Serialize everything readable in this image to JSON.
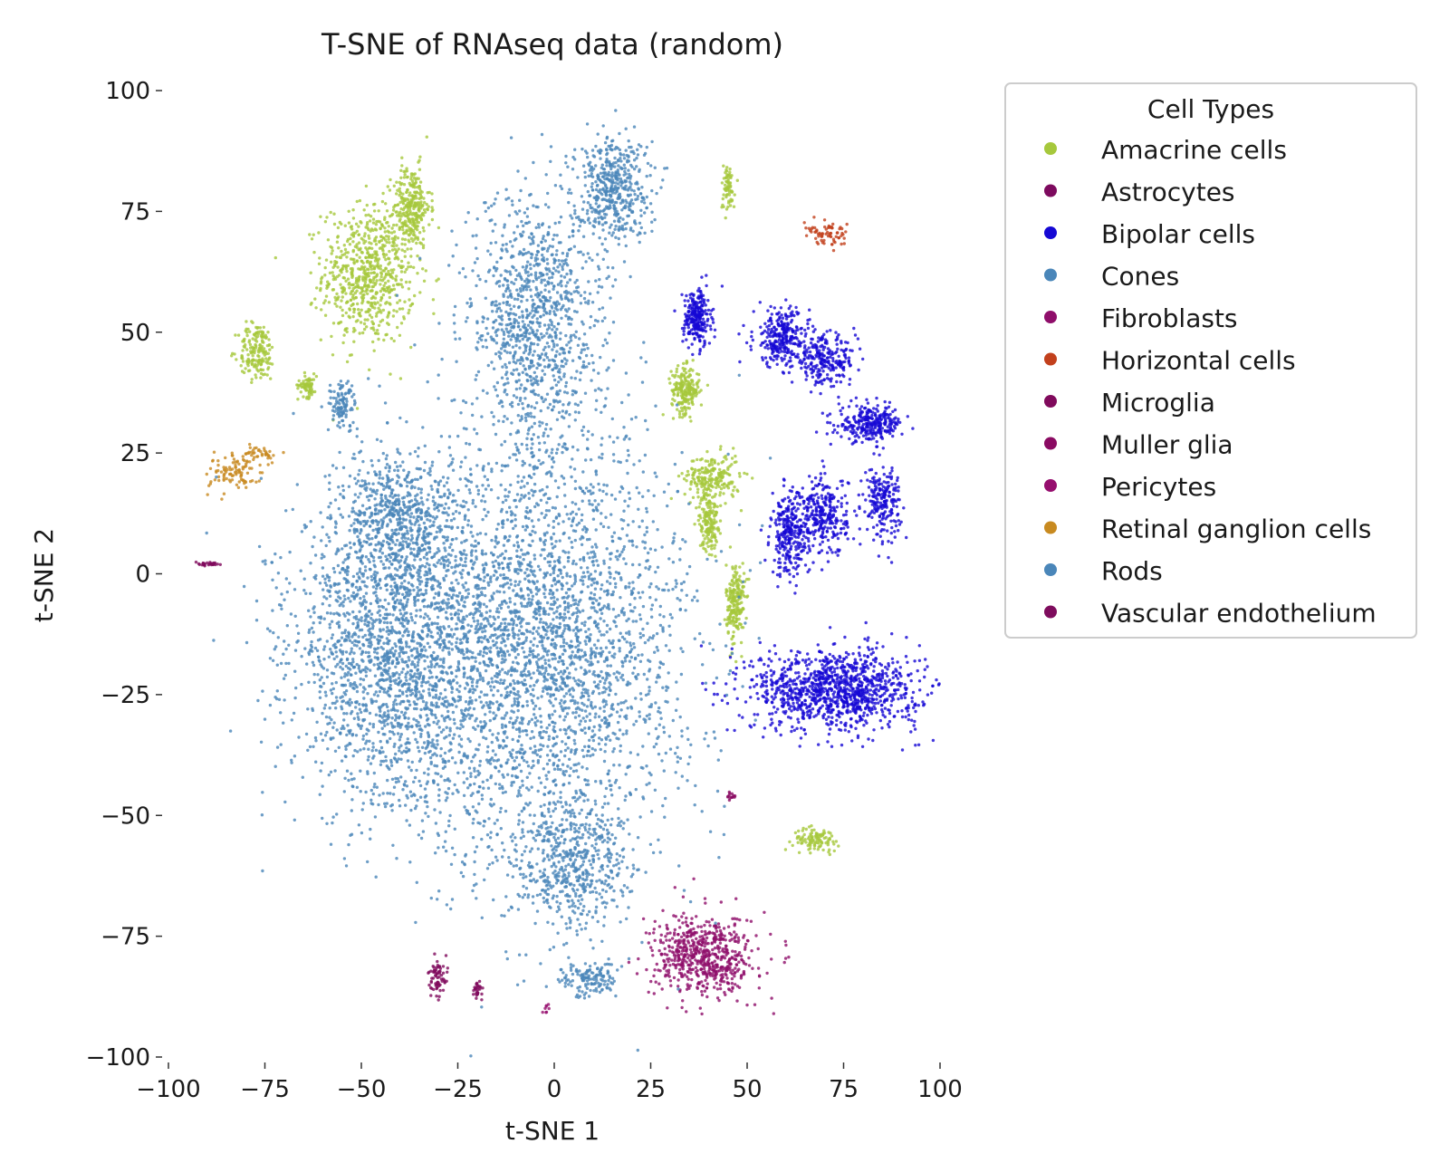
{
  "chart_data": {
    "type": "scatter",
    "title": "T-SNE of RNAseq data (random)",
    "xlabel": "t-SNE 1",
    "ylabel": "t-SNE 2",
    "xlim": [
      -100,
      100
    ],
    "ylim": [
      -100,
      100
    ],
    "xticks": [
      -100,
      -75,
      -50,
      -25,
      0,
      25,
      50,
      75,
      100
    ],
    "yticks": [
      -100,
      -75,
      -50,
      -25,
      0,
      25,
      50,
      75,
      100
    ],
    "grid": false,
    "legend": {
      "title": "Cell Types",
      "placement": "outside-right-top"
    },
    "series": [
      {
        "name": "Amacrine cells",
        "color": "#a6c83c",
        "clusters": [
          {
            "center": [
              -48,
              62
            ],
            "spread": [
              10,
              12
            ],
            "weight": 1.0
          },
          {
            "center": [
              -37,
              76
            ],
            "spread": [
              4,
              7
            ],
            "weight": 0.4
          },
          {
            "center": [
              -77,
              46
            ],
            "spread": [
              4,
              5
            ],
            "weight": 0.25
          },
          {
            "center": [
              -64,
              39
            ],
            "spread": [
              2,
              2
            ],
            "weight": 0.1
          },
          {
            "center": [
              34,
              38
            ],
            "spread": [
              3,
              4
            ],
            "weight": 0.3
          },
          {
            "center": [
              41,
              20
            ],
            "spread": [
              6,
              4
            ],
            "weight": 0.3
          },
          {
            "center": [
              40,
              11
            ],
            "spread": [
              2,
              5
            ],
            "weight": 0.25
          },
          {
            "center": [
              47,
              -6
            ],
            "spread": [
              2,
              7
            ],
            "weight": 0.3
          },
          {
            "center": [
              45,
              80
            ],
            "spread": [
              1.5,
              4
            ],
            "weight": 0.1
          },
          {
            "center": [
              68,
              -55
            ],
            "spread": [
              5,
              2
            ],
            "weight": 0.15
          }
        ]
      },
      {
        "name": "Astrocytes",
        "color": "#7d0a5e",
        "clusters": []
      },
      {
        "name": "Bipolar cells",
        "color": "#1508d4",
        "clusters": [
          {
            "center": [
              37,
              53
            ],
            "spread": [
              3,
              5
            ],
            "weight": 0.35
          },
          {
            "center": [
              59,
              49
            ],
            "spread": [
              6,
              5
            ],
            "weight": 0.4
          },
          {
            "center": [
              70,
              44
            ],
            "spread": [
              7,
              4
            ],
            "weight": 0.35
          },
          {
            "center": [
              82,
              31
            ],
            "spread": [
              7,
              3
            ],
            "weight": 0.4
          },
          {
            "center": [
              85,
              15
            ],
            "spread": [
              4,
              6
            ],
            "weight": 0.3
          },
          {
            "center": [
              70,
              12
            ],
            "spread": [
              5,
              7
            ],
            "weight": 0.4
          },
          {
            "center": [
              61,
              8
            ],
            "spread": [
              4,
              7
            ],
            "weight": 0.4
          },
          {
            "center": [
              73,
              -24
            ],
            "spread": [
              18,
              7
            ],
            "weight": 1.6
          }
        ]
      },
      {
        "name": "Cones",
        "color": "#4a86b9",
        "clusters": [
          {
            "center": [
              15,
              80
            ],
            "spread": [
              8,
              9
            ],
            "weight": 0.7
          },
          {
            "center": [
              -55,
              35
            ],
            "spread": [
              3,
              4
            ],
            "weight": 0.15
          },
          {
            "center": [
              9,
              -84
            ],
            "spread": [
              6,
              3
            ],
            "weight": 0.2
          }
        ]
      },
      {
        "name": "Fibroblasts",
        "color": "#8f0e6a",
        "clusters": [
          {
            "center": [
              39,
              -79
            ],
            "spread": [
              11,
              7
            ],
            "weight": 0.9
          }
        ]
      },
      {
        "name": "Horizontal cells",
        "color": "#c2401c",
        "clusters": [
          {
            "center": [
              71,
              70
            ],
            "spread": [
              5,
              2
            ],
            "weight": 0.1
          }
        ]
      },
      {
        "name": "Microglia",
        "color": "#800a5c",
        "clusters": [
          {
            "center": [
              -90,
              2
            ],
            "spread": [
              3,
              0.3
            ],
            "weight": 0.04
          },
          {
            "center": [
              -30,
              -84
            ],
            "spread": [
              2,
              3
            ],
            "weight": 0.1
          },
          {
            "center": [
              -20,
              -86
            ],
            "spread": [
              1,
              2
            ],
            "weight": 0.04
          }
        ]
      },
      {
        "name": "Muller glia",
        "color": "#8a0a62",
        "clusters": [
          {
            "center": [
              46,
              -46
            ],
            "spread": [
              1,
              1
            ],
            "weight": 0.02
          }
        ]
      },
      {
        "name": "Pericytes",
        "color": "#960e6e",
        "clusters": [
          {
            "center": [
              -2,
              -90
            ],
            "spread": [
              1,
              1
            ],
            "weight": 0.01
          }
        ]
      },
      {
        "name": "Retinal ganglion cells",
        "color": "#c88a20",
        "clusters": [
          {
            "center": [
              -83,
              21
            ],
            "spread": [
              6,
              3
            ],
            "weight": 0.15
          },
          {
            "center": [
              -76,
              25
            ],
            "spread": [
              3,
              1.5
            ],
            "weight": 0.05
          }
        ]
      },
      {
        "name": "Rods",
        "color": "#4a86b9",
        "clusters": [
          {
            "center": [
              -2,
              -15
            ],
            "spread": [
              30,
              38
            ],
            "weight": 4.5
          },
          {
            "center": [
              -42,
              -15
            ],
            "spread": [
              22,
              28
            ],
            "weight": 3.0
          },
          {
            "center": [
              -5,
              52
            ],
            "spread": [
              14,
              22
            ],
            "weight": 1.5
          },
          {
            "center": [
              -40,
              12
            ],
            "spread": [
              12,
              10
            ],
            "weight": 0.7
          },
          {
            "center": [
              5,
              -60
            ],
            "spread": [
              12,
              10
            ],
            "weight": 0.7
          }
        ]
      },
      {
        "name": "Vascular endothelium",
        "color": "#7e0c5d",
        "clusters": []
      }
    ]
  }
}
